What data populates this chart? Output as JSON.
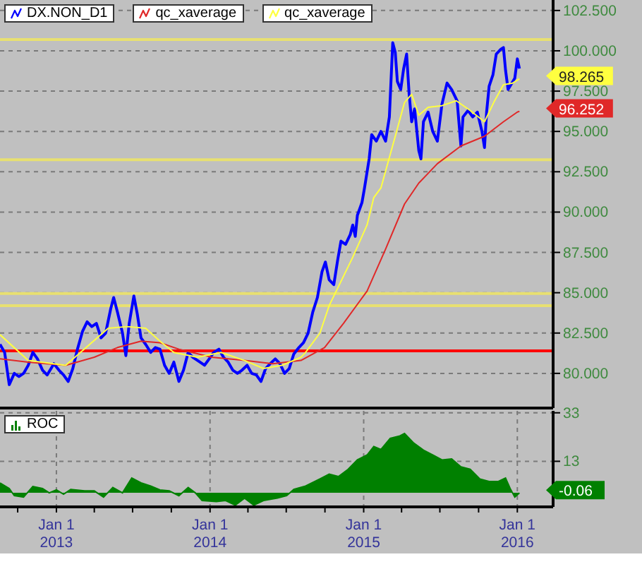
{
  "chart_data": [
    {
      "type": "line",
      "legend": "top left",
      "tick_labels": "y",
      "grid": true,
      "xlim": [
        "2012-08-20",
        "2016-03-26"
      ],
      "xticks": [
        "2013-01-01",
        "2014-01-01",
        "2015-01-01",
        "2016-01-01"
      ],
      "ylim": [
        77.85,
        103.15
      ],
      "yticks": [
        {
          "value": 80,
          "label": "80.000"
        },
        {
          "value": 82.5,
          "label": "82.500"
        },
        {
          "value": 85,
          "label": "85.000"
        },
        {
          "value": 87.5,
          "label": "87.500"
        },
        {
          "value": 90,
          "label": "90.000"
        },
        {
          "value": 92.5,
          "label": "92.500"
        },
        {
          "value": 95,
          "label": "95.000"
        },
        {
          "value": 97.5,
          "label": "97.500"
        },
        {
          "value": 100,
          "label": "100.000"
        },
        {
          "value": 102.5,
          "label": "102.500"
        }
      ],
      "series": [
        {
          "name": "DX.NON_D1",
          "color": "#0000ff",
          "x": [
            "2012-08-20",
            "2012-08-31",
            "2012-09-11",
            "2012-09-23",
            "2012-10-04",
            "2012-10-15",
            "2012-10-26",
            "2012-11-06",
            "2012-11-17",
            "2012-11-29",
            "2012-12-10",
            "2012-12-26",
            "2013-01-07",
            "2013-01-18",
            "2013-01-29",
            "2013-02-09",
            "2013-02-20",
            "2013-03-04",
            "2013-03-15",
            "2013-03-26",
            "2013-04-06",
            "2013-04-17",
            "2013-04-28",
            "2013-05-10",
            "2013-05-17",
            "2013-05-26",
            "2013-06-07",
            "2013-06-15",
            "2013-06-23",
            "2013-07-04",
            "2013-07-12",
            "2013-07-21",
            "2013-08-01",
            "2013-08-13",
            "2013-08-24",
            "2013-09-04",
            "2013-09-15",
            "2013-09-26",
            "2013-10-07",
            "2013-10-19",
            "2013-10-30",
            "2013-11-10",
            "2013-11-21",
            "2013-12-08",
            "2013-12-19",
            "2013-12-30",
            "2014-01-10",
            "2014-01-22",
            "2014-02-02",
            "2014-02-13",
            "2014-02-24",
            "2014-03-07",
            "2014-03-18",
            "2014-03-30",
            "2014-04-10",
            "2014-04-21",
            "2014-05-02",
            "2014-05-13",
            "2014-05-24",
            "2014-06-05",
            "2014-06-16",
            "2014-06-27",
            "2014-07-08",
            "2014-07-19",
            "2014-07-31",
            "2014-08-11",
            "2014-08-22",
            "2014-09-02",
            "2014-09-13",
            "2014-09-24",
            "2014-10-02",
            "2014-10-11",
            "2014-10-22",
            "2014-10-31",
            "2014-11-08",
            "2014-11-19",
            "2014-11-30",
            "2014-12-06",
            "2014-12-12",
            "2014-12-17",
            "2014-12-28",
            "2015-01-03",
            "2015-01-14",
            "2015-01-20",
            "2015-01-31",
            "2015-02-11",
            "2015-02-22",
            "2015-03-03",
            "2015-03-11",
            "2015-03-17",
            "2015-03-22",
            "2015-03-30",
            "2015-04-06",
            "2015-04-13",
            "2015-04-19",
            "2015-04-25",
            "2015-05-02",
            "2015-05-12",
            "2015-05-17",
            "2015-05-23",
            "2015-06-03",
            "2015-06-14",
            "2015-06-25",
            "2015-07-06",
            "2015-07-18",
            "2015-07-29",
            "2015-08-11",
            "2015-08-20",
            "2015-08-25",
            "2015-09-06",
            "2015-09-17",
            "2015-09-28",
            "2015-10-09",
            "2015-10-15",
            "2015-10-20",
            "2015-10-26",
            "2015-11-04",
            "2015-11-12",
            "2015-11-23",
            "2015-11-29",
            "2015-12-04",
            "2015-12-10",
            "2015-12-19",
            "2015-12-26",
            "2016-01-01",
            "2016-01-06"
          ],
          "values": [
            81.8,
            81.3,
            79.3,
            80.0,
            79.8,
            80.0,
            80.5,
            81.3,
            80.9,
            80.2,
            79.9,
            80.6,
            80.2,
            79.9,
            79.5,
            80.3,
            81.5,
            82.6,
            83.2,
            82.9,
            83.1,
            82.2,
            82.5,
            84.0,
            84.7,
            83.8,
            82.5,
            81.1,
            83.1,
            84.8,
            83.7,
            82.2,
            81.8,
            81.3,
            81.6,
            81.5,
            80.5,
            80.0,
            80.7,
            79.5,
            80.2,
            81.3,
            81.0,
            80.7,
            80.5,
            80.9,
            81.3,
            81.5,
            81.0,
            80.7,
            80.2,
            80.0,
            80.2,
            80.5,
            80.0,
            79.9,
            79.5,
            80.3,
            80.6,
            80.9,
            80.6,
            80.0,
            80.3,
            81.2,
            81.6,
            81.9,
            82.5,
            83.8,
            84.7,
            86.3,
            86.9,
            85.8,
            85.5,
            87.0,
            88.2,
            88.0,
            88.6,
            89.2,
            88.5,
            89.8,
            90.6,
            91.5,
            93.3,
            94.8,
            94.4,
            95.0,
            94.4,
            95.9,
            100.5,
            99.9,
            98.1,
            97.6,
            98.9,
            99.8,
            97.3,
            95.6,
            96.4,
            93.8,
            93.3,
            95.6,
            96.2,
            95.0,
            94.4,
            96.7,
            98.0,
            97.6,
            96.9,
            94.1,
            95.9,
            96.3,
            95.9,
            96.2,
            95.0,
            94.0,
            96.2,
            97.8,
            98.5,
            99.8,
            100.1,
            100.2,
            98.8,
            97.6,
            98.0,
            98.3,
            99.5,
            98.9
          ]
        },
        {
          "name": "qc_xaverage",
          "color": "#e02828",
          "x": [
            "2012-08-20",
            "2012-10-26",
            "2013-01-23",
            "2013-04-01",
            "2013-05-26",
            "2013-07-21",
            "2013-09-04",
            "2013-10-19",
            "2014-01-05",
            "2014-03-24",
            "2014-05-30",
            "2014-08-05",
            "2014-09-30",
            "2014-11-14",
            "2015-01-09",
            "2015-02-22",
            "2015-04-08",
            "2015-05-12",
            "2015-06-25",
            "2015-08-20",
            "2015-10-15",
            "2015-11-29",
            "2016-01-01",
            "2016-01-06"
          ],
          "values": [
            80.9,
            80.7,
            80.5,
            81.0,
            81.6,
            82.0,
            81.9,
            81.5,
            81.0,
            80.8,
            80.6,
            80.8,
            81.6,
            83.1,
            85.1,
            87.7,
            90.5,
            91.8,
            93.0,
            94.1,
            94.7,
            95.6,
            96.2,
            96.252
          ]
        },
        {
          "name": "qc_xaverage",
          "color": "#ffff40",
          "x": [
            "2012-08-20",
            "2012-10-26",
            "2013-01-23",
            "2013-05-04",
            "2013-06-18",
            "2013-08-01",
            "2013-09-04",
            "2013-10-07",
            "2013-12-02",
            "2014-01-27",
            "2014-03-24",
            "2014-05-08",
            "2014-06-21",
            "2014-08-05",
            "2014-08-16",
            "2014-09-19",
            "2014-10-11",
            "2014-12-06",
            "2015-01-09",
            "2015-01-25",
            "2015-02-11",
            "2015-03-17",
            "2015-04-08",
            "2015-04-25",
            "2015-05-12",
            "2015-06-03",
            "2015-07-06",
            "2015-08-09",
            "2015-09-11",
            "2015-10-15",
            "2015-11-06",
            "2015-11-29",
            "2015-12-21",
            "2016-01-06"
          ],
          "values": [
            82.4,
            80.8,
            80.5,
            82.8,
            82.9,
            82.8,
            82.0,
            81.3,
            81.0,
            81.3,
            80.8,
            80.3,
            80.5,
            81.0,
            81.3,
            82.5,
            84.2,
            87.2,
            89.2,
            90.9,
            91.5,
            94.7,
            96.8,
            97.3,
            96.0,
            96.5,
            96.6,
            96.9,
            96.3,
            95.6,
            96.8,
            97.9,
            98.0,
            98.265
          ]
        }
      ],
      "ref_lines": [
        {
          "axis": "y",
          "value": 100.7,
          "color": "#e8e070"
        },
        {
          "axis": "y",
          "value": 93.25,
          "color": "#e8e070"
        },
        {
          "axis": "y",
          "value": 84.95,
          "color": "#e8e070"
        },
        {
          "axis": "y",
          "value": 84.2,
          "color": "#e8e070"
        },
        {
          "axis": "y",
          "value": 81.4,
          "color": "#ff0000"
        }
      ],
      "annotations": [
        {
          "text": "98.265",
          "x": "2016-01-06",
          "y": 98.265
        },
        {
          "text": "96.252",
          "x": "2016-01-06",
          "y": 96.252
        }
      ]
    },
    {
      "type": "area",
      "legend": "top left",
      "grid": true,
      "xlim": [
        "2012-08-20",
        "2016-03-26"
      ],
      "xticks": [
        {
          "value": "2012-10-01",
          "label": null
        },
        {
          "value": "2013-01-01",
          "label": "Jan 1\n2013"
        },
        {
          "value": "2013-04-01",
          "label": null
        },
        {
          "value": "2013-07-01",
          "label": null
        },
        {
          "value": "2013-10-01",
          "label": null
        },
        {
          "value": "2014-01-01",
          "label": "Jan 1\n2014"
        },
        {
          "value": "2014-04-01",
          "label": null
        },
        {
          "value": "2014-07-01",
          "label": null
        },
        {
          "value": "2014-10-01",
          "label": null
        },
        {
          "value": "2015-01-01",
          "label": "Jan 1\n2015"
        },
        {
          "value": "2015-04-01",
          "label": null
        },
        {
          "value": "2015-07-01",
          "label": null
        },
        {
          "value": "2015-10-01",
          "label": null
        },
        {
          "value": "2016-01-01",
          "label": "Jan 1\n2016"
        }
      ],
      "ylim": [
        -5.8,
        33.8
      ],
      "yticks": [
        33,
        13
      ],
      "series": [
        {
          "name": "ROC",
          "color": "#008000",
          "x": [
            "2012-08-20",
            "2012-09-11",
            "2012-09-23",
            "2012-10-15",
            "2012-11-06",
            "2012-11-29",
            "2012-12-15",
            "2013-01-01",
            "2013-01-18",
            "2013-02-04",
            "2013-03-09",
            "2013-04-01",
            "2013-04-23",
            "2013-05-15",
            "2013-06-07",
            "2013-06-29",
            "2013-07-21",
            "2013-08-13",
            "2013-09-04",
            "2013-09-26",
            "2013-10-19",
            "2013-11-10",
            "2013-11-27",
            "2013-12-13",
            "2014-01-16",
            "2014-02-07",
            "2014-03-02",
            "2014-03-24",
            "2014-04-15",
            "2014-05-08",
            "2014-06-10",
            "2014-07-02",
            "2014-07-19",
            "2014-08-16",
            "2014-09-19",
            "2014-10-11",
            "2014-11-02",
            "2014-11-25",
            "2014-12-17",
            "2015-01-09",
            "2015-01-25",
            "2015-02-11",
            "2015-03-05",
            "2015-03-28",
            "2015-04-08",
            "2015-04-30",
            "2015-05-23",
            "2015-06-14",
            "2015-07-06",
            "2015-07-29",
            "2015-08-20",
            "2015-09-11",
            "2015-10-04",
            "2015-10-26",
            "2015-11-17",
            "2015-12-04",
            "2015-12-15",
            "2015-12-26",
            "2016-01-06"
          ],
          "values": [
            4.1,
            1.8,
            -1.2,
            -1.8,
            2.6,
            1.8,
            0,
            1.2,
            -0.6,
            1.4,
            0.8,
            0.8,
            -1.8,
            2.2,
            0,
            6.1,
            4.1,
            2.8,
            1.2,
            0.8,
            -1.2,
            2.2,
            0,
            -3.2,
            -3.6,
            -3.2,
            -5.1,
            -2.2,
            -5.1,
            -3.2,
            -2.2,
            -1.2,
            1.4,
            2.8,
            5.7,
            7.7,
            6.7,
            9.7,
            13.6,
            15.6,
            19.1,
            17.9,
            22.5,
            23.5,
            24.5,
            20.5,
            17.6,
            15.6,
            13.6,
            14,
            10.7,
            9.7,
            5.7,
            4.7,
            4.7,
            6.1,
            1.8,
            -1.8,
            -0.06
          ]
        }
      ],
      "annotations": [
        {
          "text": "-0.06",
          "x": "2016-01-06",
          "y": -0.06
        }
      ]
    }
  ]
}
